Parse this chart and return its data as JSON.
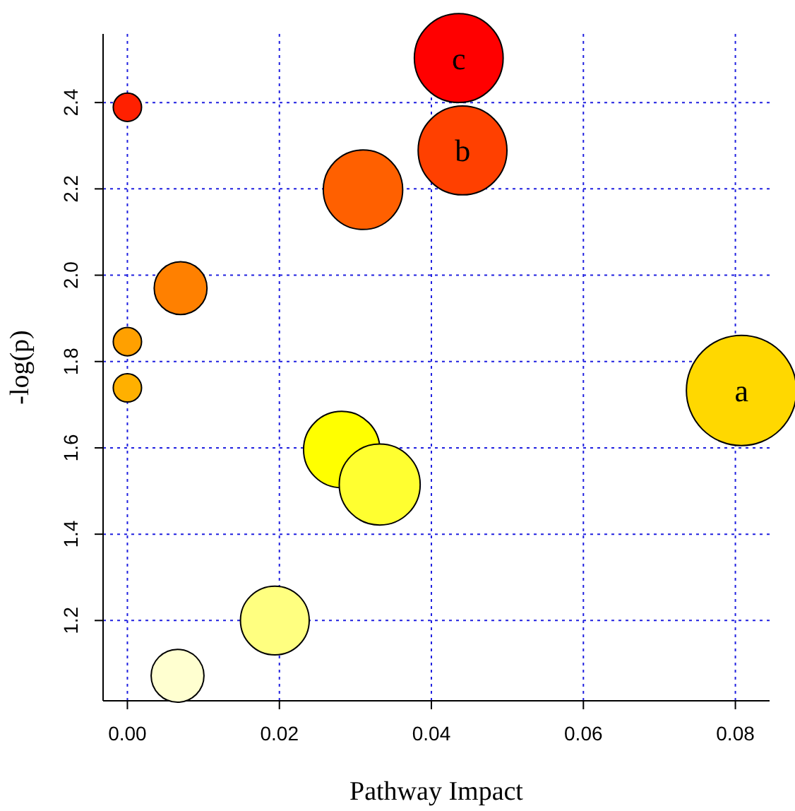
{
  "chart_data": {
    "type": "bubble",
    "xlabel": "Pathway Impact",
    "ylabel": "-log(p)",
    "xlim": [
      -0.0032,
      0.0845
    ],
    "ylim": [
      1.014,
      2.559
    ],
    "xticks": [
      {
        "value": 0,
        "label": "0.00"
      },
      {
        "value": 0.02,
        "label": "0.02"
      },
      {
        "value": 0.04,
        "label": "0.04"
      },
      {
        "value": 0.06,
        "label": "0.06"
      },
      {
        "value": 0.08,
        "label": "0.08"
      }
    ],
    "yticks": [
      {
        "value": 1.2,
        "label": "1.2"
      },
      {
        "value": 1.4,
        "label": "1.4"
      },
      {
        "value": 1.6,
        "label": "1.6"
      },
      {
        "value": 1.8,
        "label": "1.8"
      },
      {
        "value": 2.0,
        "label": "2.0"
      },
      {
        "value": 2.2,
        "label": "2.2"
      },
      {
        "value": 2.4,
        "label": "2.4"
      }
    ],
    "grid": true,
    "x": [
      0,
      0.0436,
      0.0441,
      0.031,
      0.007,
      0,
      0,
      0.0808,
      0.0282,
      0.0332,
      0.0194,
      0.0066
    ],
    "values": [
      2.389,
      2.503,
      2.289,
      2.198,
      1.97,
      1.846,
      1.739,
      1.733,
      1.596,
      1.515,
      1.2,
      1.072
    ],
    "sizes": [
      0.066,
      0.65,
      0.65,
      0.52,
      0.23,
      0.066,
      0.066,
      1,
      0.48,
      0.54,
      0.39,
      0.23
    ],
    "colors": [
      "#ff2000",
      "#ff0000",
      "#ff4000",
      "#ff6000",
      "#ff8000",
      "#ffa000",
      "#ffb000",
      "#ffd800",
      "#ffff00",
      "#ffff30",
      "#ffff80",
      "#ffffd0"
    ],
    "annotations": [
      {
        "text": "c",
        "x": 0.0436,
        "y": 2.503
      },
      {
        "text": "b",
        "x": 0.0441,
        "y": 2.289
      },
      {
        "text": "a",
        "x": 0.0808,
        "y": 1.733
      }
    ]
  }
}
